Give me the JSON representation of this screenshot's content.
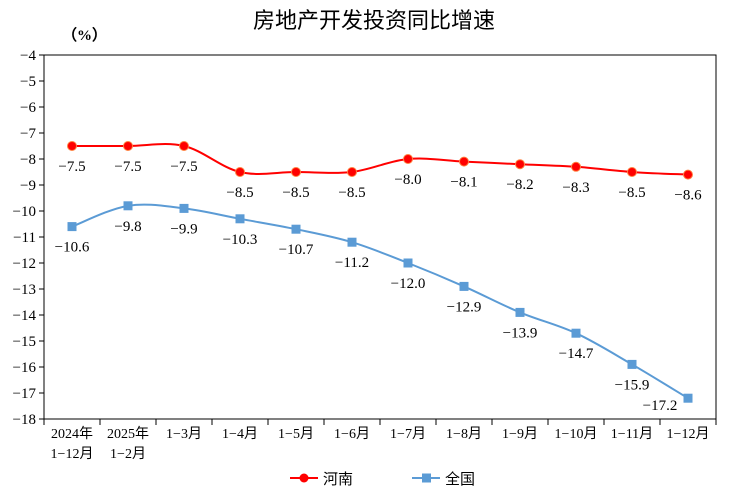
{
  "chart_data": {
    "type": "line",
    "title": "房地产开发投资同比增速",
    "ylabel": "（%）",
    "ylim": [
      -18,
      -4
    ],
    "yticks": [
      -4,
      -5,
      -6,
      -7,
      -8,
      -9,
      -10,
      -11,
      -12,
      -13,
      -14,
      -15,
      -16,
      -17,
      -18
    ],
    "categories": [
      [
        "2024年",
        "1-12月"
      ],
      [
        "2025年",
        "1-2月"
      ],
      [
        "1-3月"
      ],
      [
        "1-4月"
      ],
      [
        "1-5月"
      ],
      [
        "1-6月"
      ],
      [
        "1-7月"
      ],
      [
        "1-8月"
      ],
      [
        "1-9月"
      ],
      [
        "1-10月"
      ],
      [
        "1-11月"
      ],
      [
        "1-12月"
      ]
    ],
    "legend_placement": "bottom",
    "grid": false,
    "series": [
      {
        "name": "河南",
        "color": "#FF0000",
        "marker": "circle",
        "values": [
          -7.5,
          -7.5,
          -7.5,
          -8.5,
          -8.5,
          -8.5,
          -8.0,
          -8.1,
          -8.2,
          -8.3,
          -8.5,
          -8.6
        ],
        "labels": [
          "-7.5",
          "-7.5",
          "-7.5",
          "-8.5",
          "-8.5",
          "-8.5",
          "-8.0",
          "-8.1",
          "-8.2",
          "-8.3",
          "-8.5",
          "-8.6"
        ]
      },
      {
        "name": "全国",
        "color": "#5B9BD5",
        "marker": "square",
        "values": [
          -10.6,
          -9.8,
          -9.9,
          -10.3,
          -10.7,
          -11.2,
          -12.0,
          -12.9,
          -13.9,
          -14.7,
          -15.9,
          -17.2
        ],
        "labels": [
          "-10.6",
          "-9.8",
          "-9.9",
          "-10.3",
          "-10.7",
          "-11.2",
          "-12.0",
          "-12.9",
          "-13.9",
          "-14.7",
          "-15.9",
          "-17.2"
        ]
      }
    ]
  }
}
